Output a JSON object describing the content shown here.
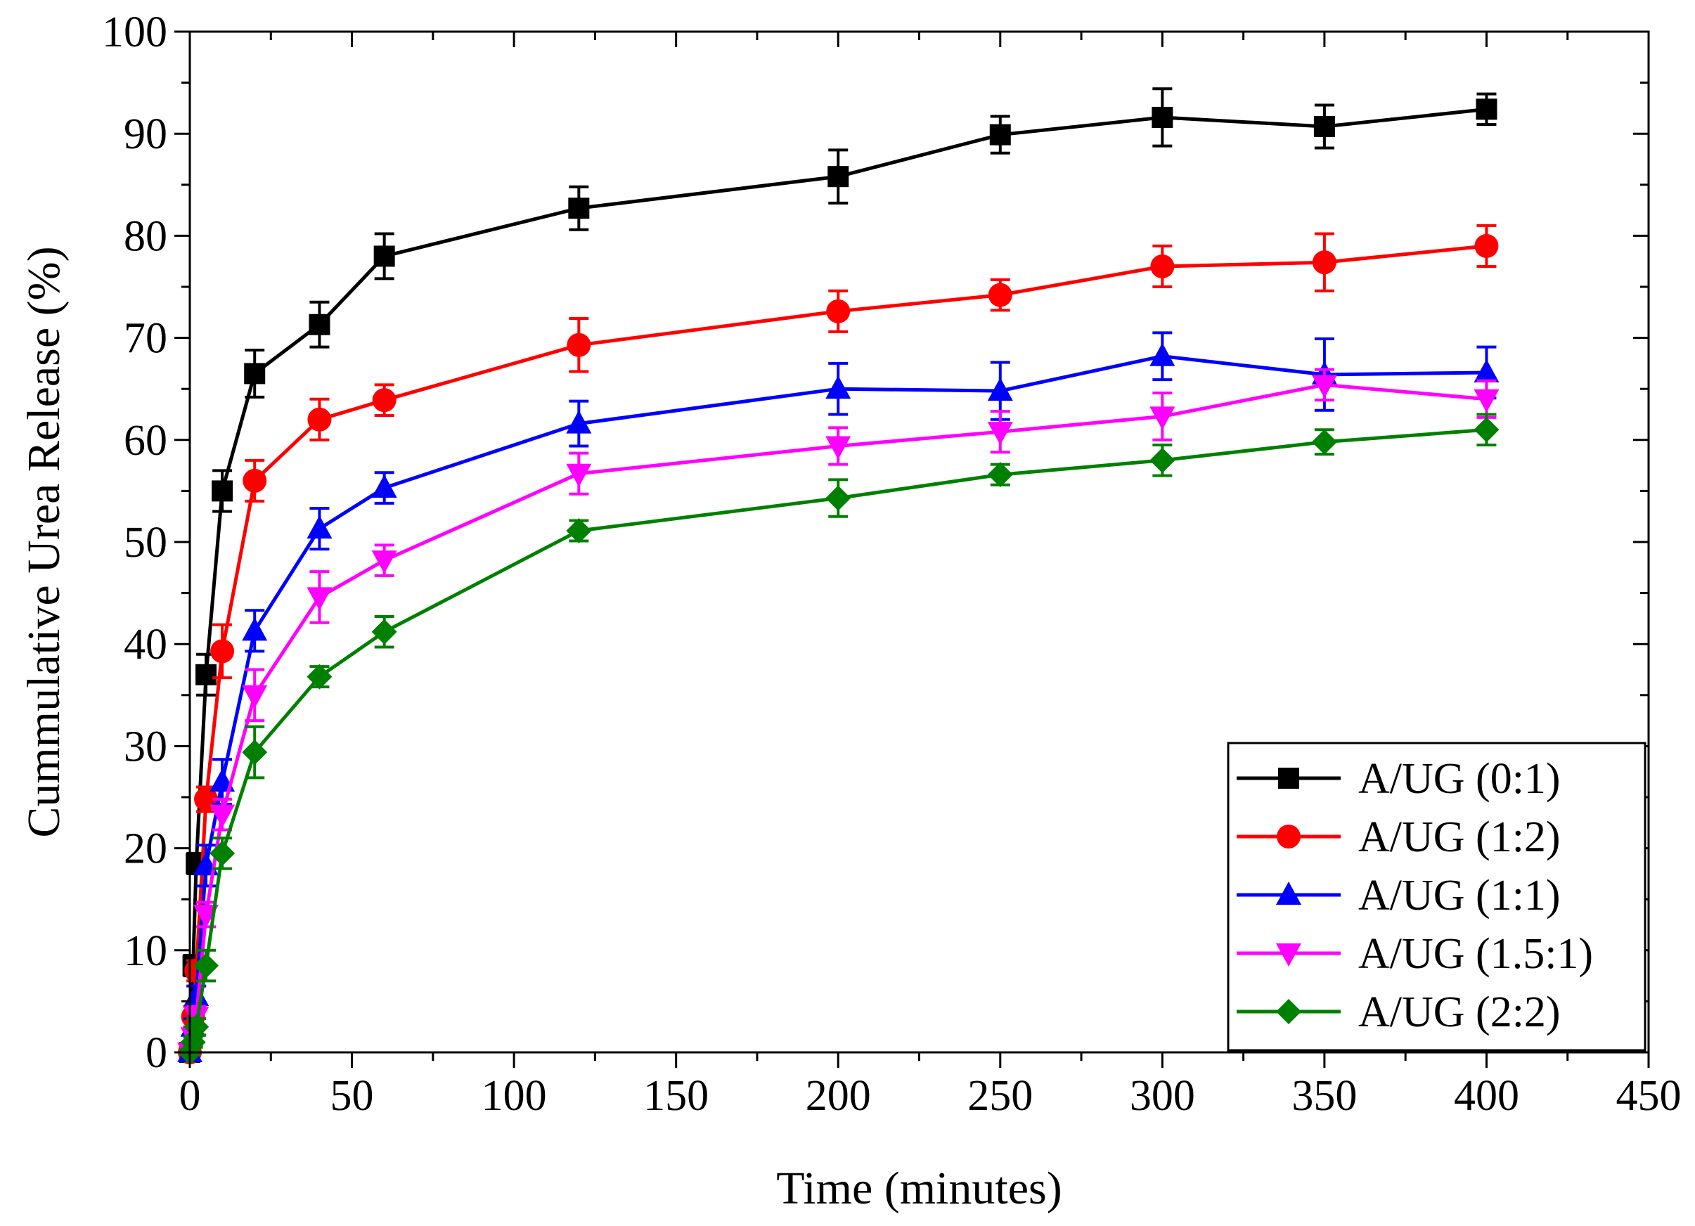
{
  "chart_data": {
    "type": "line",
    "title": "",
    "xlabel": "Time (minutes)",
    "ylabel": "Cummulative Urea Release (%)",
    "xlim": [
      0,
      450
    ],
    "ylim": [
      0,
      100
    ],
    "x_ticks": [
      "0",
      "50",
      "100",
      "150",
      "200",
      "250",
      "300",
      "350",
      "400",
      "450"
    ],
    "y_ticks": [
      "0",
      "10",
      "20",
      "30",
      "40",
      "50",
      "60",
      "70",
      "80",
      "90",
      "100"
    ],
    "grid": false,
    "legend_position": "bottom-right",
    "series": [
      {
        "name": "A/UG (0:1)",
        "color": "#000000",
        "marker": "square",
        "x": [
          0,
          1,
          2,
          5,
          10,
          20,
          40,
          60,
          120,
          200,
          250,
          300,
          350,
          400
        ],
        "y": [
          0,
          8.5,
          18.5,
          37,
          55,
          66.5,
          71.3,
          78,
          82.7,
          85.8,
          89.9,
          91.6,
          90.7,
          92.4
        ],
        "err": [
          0,
          1,
          1,
          2,
          2,
          2.3,
          2.2,
          2.2,
          2.1,
          2.6,
          1.8,
          2.8,
          2.1,
          1.5
        ]
      },
      {
        "name": "A/UG (1:2)",
        "color": "#ff0000",
        "marker": "circle",
        "x": [
          0,
          1,
          2,
          5,
          10,
          20,
          40,
          60,
          120,
          200,
          250,
          300,
          350,
          400
        ],
        "y": [
          0,
          3.5,
          8,
          24.8,
          39.3,
          56,
          62,
          63.9,
          69.3,
          72.6,
          74.2,
          77,
          77.4,
          79
        ],
        "err": [
          0,
          1,
          1,
          1.2,
          2.6,
          2,
          2,
          1.5,
          2.6,
          2,
          1.5,
          2,
          2.8,
          2
        ]
      },
      {
        "name": "A/UG (1:1)",
        "color": "#0000ff",
        "marker": "triangle-up",
        "x": [
          0,
          1,
          2,
          5,
          10,
          20,
          40,
          60,
          120,
          200,
          250,
          300,
          350,
          400
        ],
        "y": [
          0,
          2.5,
          5.5,
          18.3,
          26.5,
          41.3,
          51.3,
          55.3,
          61.6,
          65,
          64.8,
          68.2,
          66.4,
          66.6
        ],
        "err": [
          0,
          0.8,
          1,
          2,
          2.2,
          2,
          2,
          1.5,
          2.2,
          2.5,
          2.8,
          2.3,
          3.5,
          2.5
        ]
      },
      {
        "name": "A/UG (1.5:1)",
        "color": "#ff00ff",
        "marker": "triangle-down",
        "x": [
          0,
          1,
          2,
          5,
          10,
          20,
          40,
          60,
          120,
          200,
          250,
          300,
          350,
          400
        ],
        "y": [
          0,
          1.5,
          3.5,
          13.5,
          23.3,
          35,
          44.6,
          48.2,
          56.7,
          59.4,
          60.8,
          62.3,
          65.4,
          64
        ],
        "err": [
          0,
          0.8,
          1,
          1.2,
          1.5,
          2.5,
          2.5,
          1.5,
          2,
          1.8,
          2,
          2.3,
          1.5,
          1.8
        ]
      },
      {
        "name": "A/UG (2:2)",
        "color": "#008000",
        "marker": "diamond",
        "x": [
          0,
          1,
          2,
          5,
          10,
          20,
          40,
          60,
          120,
          200,
          250,
          300,
          350,
          400
        ],
        "y": [
          0,
          1,
          2.5,
          8.5,
          19.5,
          29.4,
          36.8,
          41.2,
          51.1,
          54.3,
          56.6,
          58,
          59.8,
          61
        ],
        "err": [
          0,
          0.5,
          0.8,
          1.5,
          1.5,
          2.5,
          1,
          1.5,
          1,
          1.8,
          1,
          1.5,
          1.2,
          1.5
        ]
      }
    ]
  }
}
